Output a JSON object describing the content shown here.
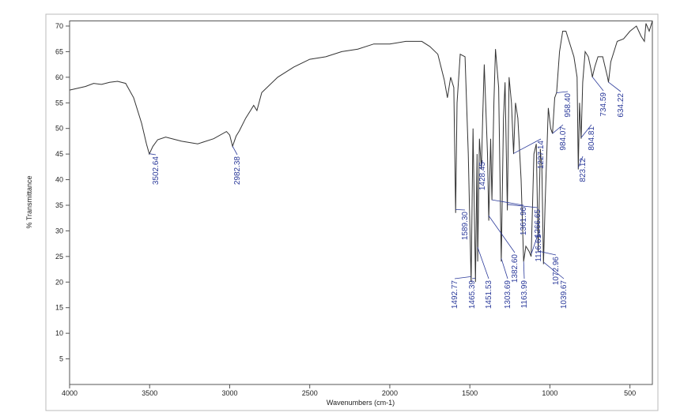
{
  "chart_data": {
    "type": "line",
    "xlabel": "Wavenumbers (cm-1)",
    "ylabel": "% Transmittance",
    "color": "#333333",
    "peak_color": "#2b3a9a",
    "xlim": [
      4000,
      360
    ],
    "ylim": [
      0,
      71
    ],
    "xticks": [
      4000,
      3500,
      3000,
      2500,
      2000,
      1500,
      1000,
      500
    ],
    "yticks": [
      5,
      10,
      15,
      20,
      25,
      30,
      35,
      40,
      45,
      50,
      55,
      60,
      65,
      70
    ],
    "x": [
      4000,
      3900,
      3850,
      3800,
      3750,
      3700,
      3650,
      3600,
      3550,
      3520,
      3502,
      3480,
      3450,
      3400,
      3300,
      3200,
      3100,
      3020,
      3000,
      2982,
      2960,
      2940,
      2900,
      2870,
      2850,
      2830,
      2800,
      2700,
      2600,
      2500,
      2400,
      2300,
      2200,
      2100,
      2000,
      1900,
      1800,
      1750,
      1700,
      1660,
      1640,
      1620,
      1600,
      1589,
      1580,
      1560,
      1530,
      1510,
      1492,
      1480,
      1465,
      1455,
      1451,
      1440,
      1428,
      1420,
      1410,
      1390,
      1382,
      1370,
      1362,
      1350,
      1340,
      1320,
      1304,
      1290,
      1280,
      1266,
      1255,
      1240,
      1227,
      1215,
      1200,
      1180,
      1164,
      1150,
      1130,
      1117,
      1100,
      1085,
      1073,
      1060,
      1050,
      1040,
      1030,
      1010,
      995,
      984,
      970,
      958,
      940,
      920,
      900,
      880,
      850,
      830,
      823,
      815,
      805,
      795,
      780,
      760,
      740,
      735,
      720,
      700,
      670,
      640,
      634,
      620,
      580,
      540,
      500,
      460,
      430,
      410,
      400,
      380,
      360
    ],
    "values": [
      57.5,
      58.2,
      58.8,
      58.6,
      59,
      59.2,
      58.8,
      56,
      51,
      47,
      45,
      46.5,
      47.8,
      48.3,
      47.5,
      47,
      48,
      49.4,
      48.7,
      46.5,
      48.5,
      49.5,
      52,
      53.5,
      54.5,
      53.5,
      57,
      60,
      62,
      63.5,
      64,
      65,
      65.5,
      66.5,
      66.5,
      67,
      67,
      66,
      64.5,
      59.5,
      56,
      60,
      58,
      33.5,
      55,
      64.5,
      64,
      45,
      20,
      50,
      20,
      45,
      24,
      48,
      42,
      52,
      62.5,
      45,
      32,
      48,
      36,
      55,
      65.5,
      58,
      24,
      52,
      59,
      34,
      60,
      55,
      45,
      55,
      52,
      40,
      24,
      27,
      26,
      25,
      45,
      47,
      26,
      46,
      42,
      23.5,
      35,
      54,
      50,
      49,
      56,
      57,
      65,
      69,
      69,
      67,
      64,
      60,
      42,
      55,
      48,
      59,
      65,
      64,
      61,
      60,
      62,
      64,
      64,
      60,
      59,
      63,
      67,
      67.5,
      69,
      70,
      68,
      67,
      70.5,
      69,
      71
    ],
    "peaks": [
      {
        "value": 3502.64,
        "label": "3502.64"
      },
      {
        "value": 2982.38,
        "label": "2982.38"
      },
      {
        "value": 1589.3,
        "label": "1589.30"
      },
      {
        "value": 1492.77,
        "label": "1492.77"
      },
      {
        "value": 1465.39,
        "label": "1465.39"
      },
      {
        "value": 1451.53,
        "label": "1451.53"
      },
      {
        "value": 1428.45,
        "label": "1428.45"
      },
      {
        "value": 1382.6,
        "label": "1382.60"
      },
      {
        "value": 1361.96,
        "label": "1361.96"
      },
      {
        "value": 1303.69,
        "label": "1303.69"
      },
      {
        "value": 1266.65,
        "label": "1266.65"
      },
      {
        "value": 1227.14,
        "label": "1227.14"
      },
      {
        "value": 1163.99,
        "label": "1163.99"
      },
      {
        "value": 1116.61,
        "label": "1116.61"
      },
      {
        "value": 1072.96,
        "label": "1072.96"
      },
      {
        "value": 1039.67,
        "label": "1039.67"
      },
      {
        "value": 984.07,
        "label": "984.07"
      },
      {
        "value": 958.4,
        "label": "958.40"
      },
      {
        "value": 823.12,
        "label": "823.12"
      },
      {
        "value": 804.81,
        "label": "804.81"
      },
      {
        "value": 734.59,
        "label": "734.59"
      },
      {
        "value": 634.22,
        "label": "634.22"
      }
    ]
  }
}
